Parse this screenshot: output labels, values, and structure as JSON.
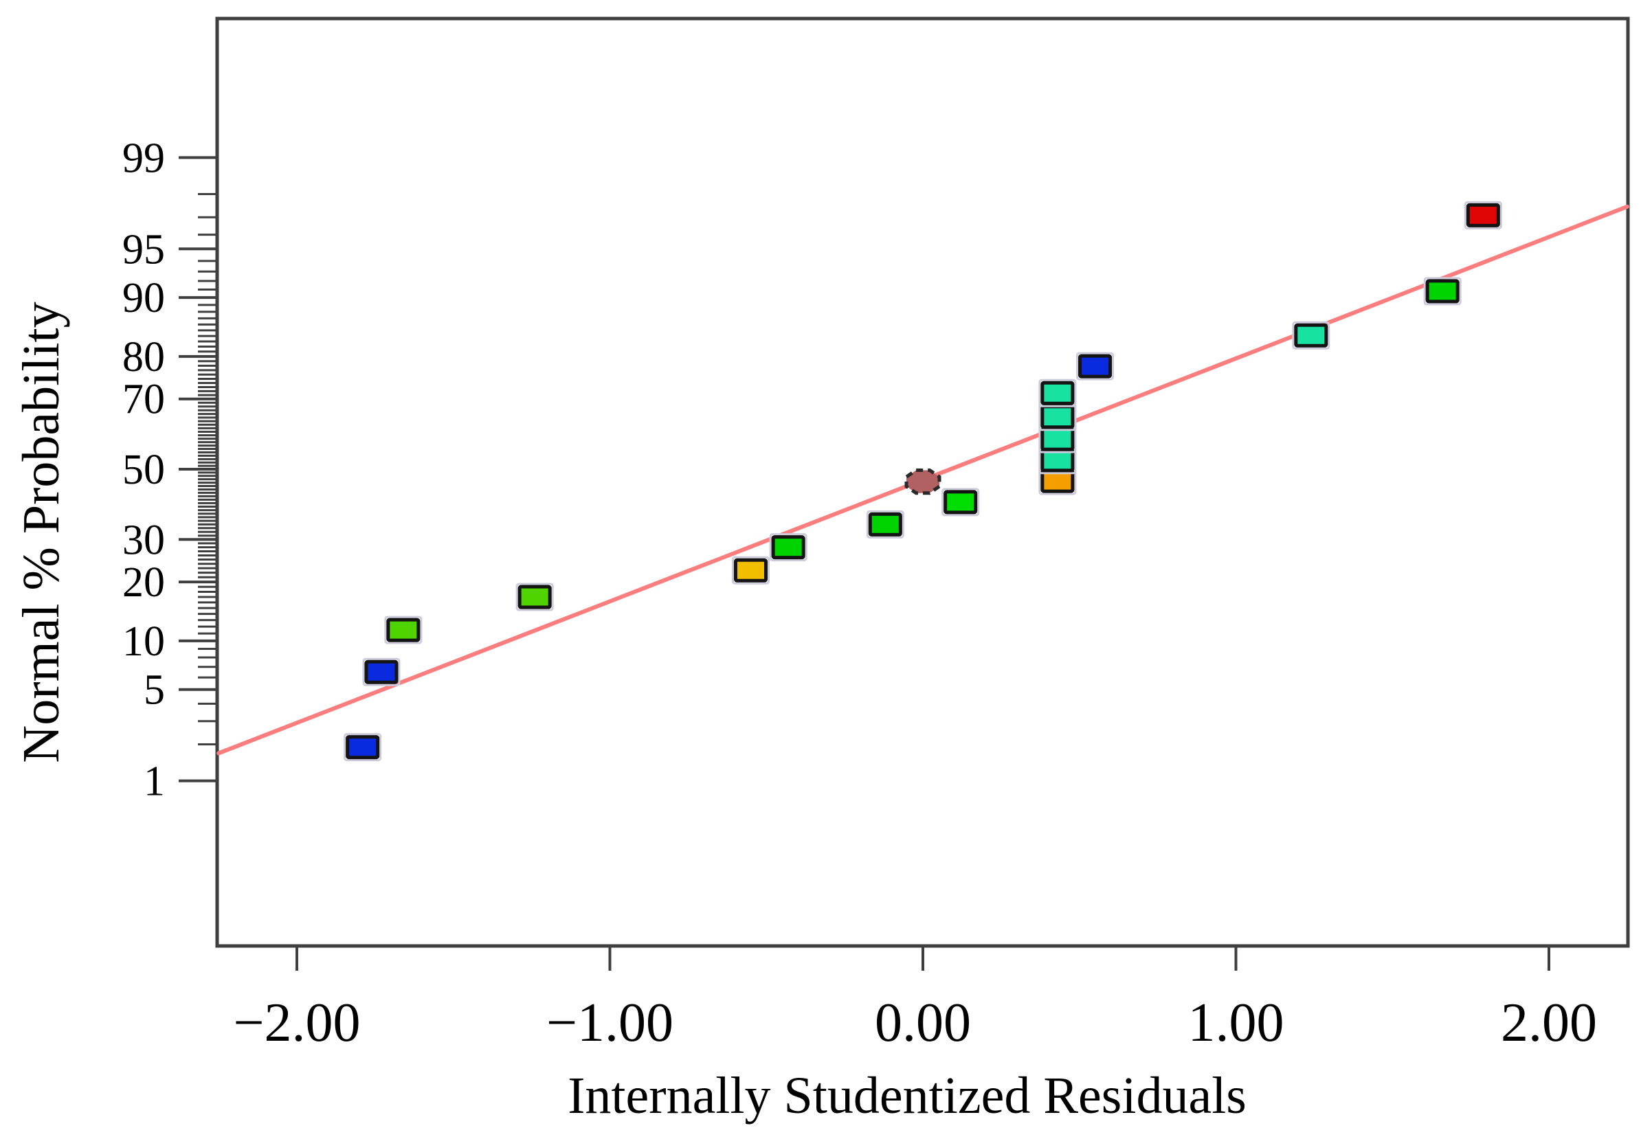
{
  "chart_data": {
    "type": "scatter",
    "subtype": "normal-probability-plot",
    "xlabel": "Internally Studentized Residuals",
    "ylabel": "Normal % Probability",
    "x_axis": {
      "tick_values": [
        -2,
        -1,
        0,
        1,
        2
      ],
      "tick_labels": [
        "−2.00",
        "−1.00",
        "0.00",
        "1.00",
        "2.00"
      ],
      "range": [
        -2.25,
        2.25
      ]
    },
    "y_axis": {
      "scale": "probit",
      "major_tick_percents": [
        1,
        5,
        10,
        20,
        30,
        50,
        70,
        80,
        90,
        95,
        99
      ],
      "major_tick_labels": [
        "1",
        "5",
        "10",
        "20",
        "30",
        "50",
        "70",
        "80",
        "90",
        "95",
        "99"
      ],
      "minor_tick_step_percent": 1,
      "range_percent": [
        1,
        99
      ]
    },
    "fit_line": {
      "x_start": -2.25,
      "prob_start": 1.7,
      "x_end": 2.25,
      "prob_end": 97.5,
      "color": "#fb7d7d"
    },
    "points": [
      {
        "x": -1.79,
        "prob": 1.9,
        "color": "#0a2ae0",
        "shape": "square"
      },
      {
        "x": -1.73,
        "prob": 6.5,
        "color": "#0a2ae0",
        "shape": "square"
      },
      {
        "x": -1.66,
        "prob": 11.5,
        "color": "#4fd400",
        "shape": "square"
      },
      {
        "x": -1.24,
        "prob": 17.0,
        "color": "#4fd400",
        "shape": "square"
      },
      {
        "x": -0.55,
        "prob": 22.5,
        "color": "#f2bf00",
        "shape": "square"
      },
      {
        "x": -0.43,
        "prob": 28.0,
        "color": "#00d400",
        "shape": "square"
      },
      {
        "x": -0.12,
        "prob": 34.0,
        "color": "#00d400",
        "shape": "square"
      },
      {
        "x": 0.12,
        "prob": 40.3,
        "color": "#00dd00",
        "shape": "square"
      },
      {
        "x": 0.0,
        "prob": 46.3,
        "color": "#b16161",
        "shape": "octagon"
      },
      {
        "x": 0.43,
        "prob": 46.5,
        "color": "#f59e00",
        "shape": "square"
      },
      {
        "x": 0.43,
        "prob": 52.7,
        "color": "#17e2a2",
        "shape": "square"
      },
      {
        "x": 0.43,
        "prob": 58.9,
        "color": "#17e2a2",
        "shape": "square"
      },
      {
        "x": 0.43,
        "prob": 65.2,
        "color": "#17e2a2",
        "shape": "square"
      },
      {
        "x": 0.43,
        "prob": 71.5,
        "color": "#17e2a2",
        "shape": "square"
      },
      {
        "x": 0.55,
        "prob": 77.9,
        "color": "#0a2ae0",
        "shape": "square"
      },
      {
        "x": 1.24,
        "prob": 84.1,
        "color": "#17e2a2",
        "shape": "square"
      },
      {
        "x": 1.66,
        "prob": 90.8,
        "color": "#00d400",
        "shape": "square"
      },
      {
        "x": 1.79,
        "prob": 97.1,
        "color": "#e00505",
        "shape": "square"
      }
    ],
    "style": {
      "frame_color": "#3f3f3f",
      "tick_color": "#3f3f3f",
      "marker_border_color": "#141414",
      "marker_halo_color": "#ccccdb",
      "octagon_border_color": "#2a2a2a",
      "background": "#ffffff"
    }
  }
}
